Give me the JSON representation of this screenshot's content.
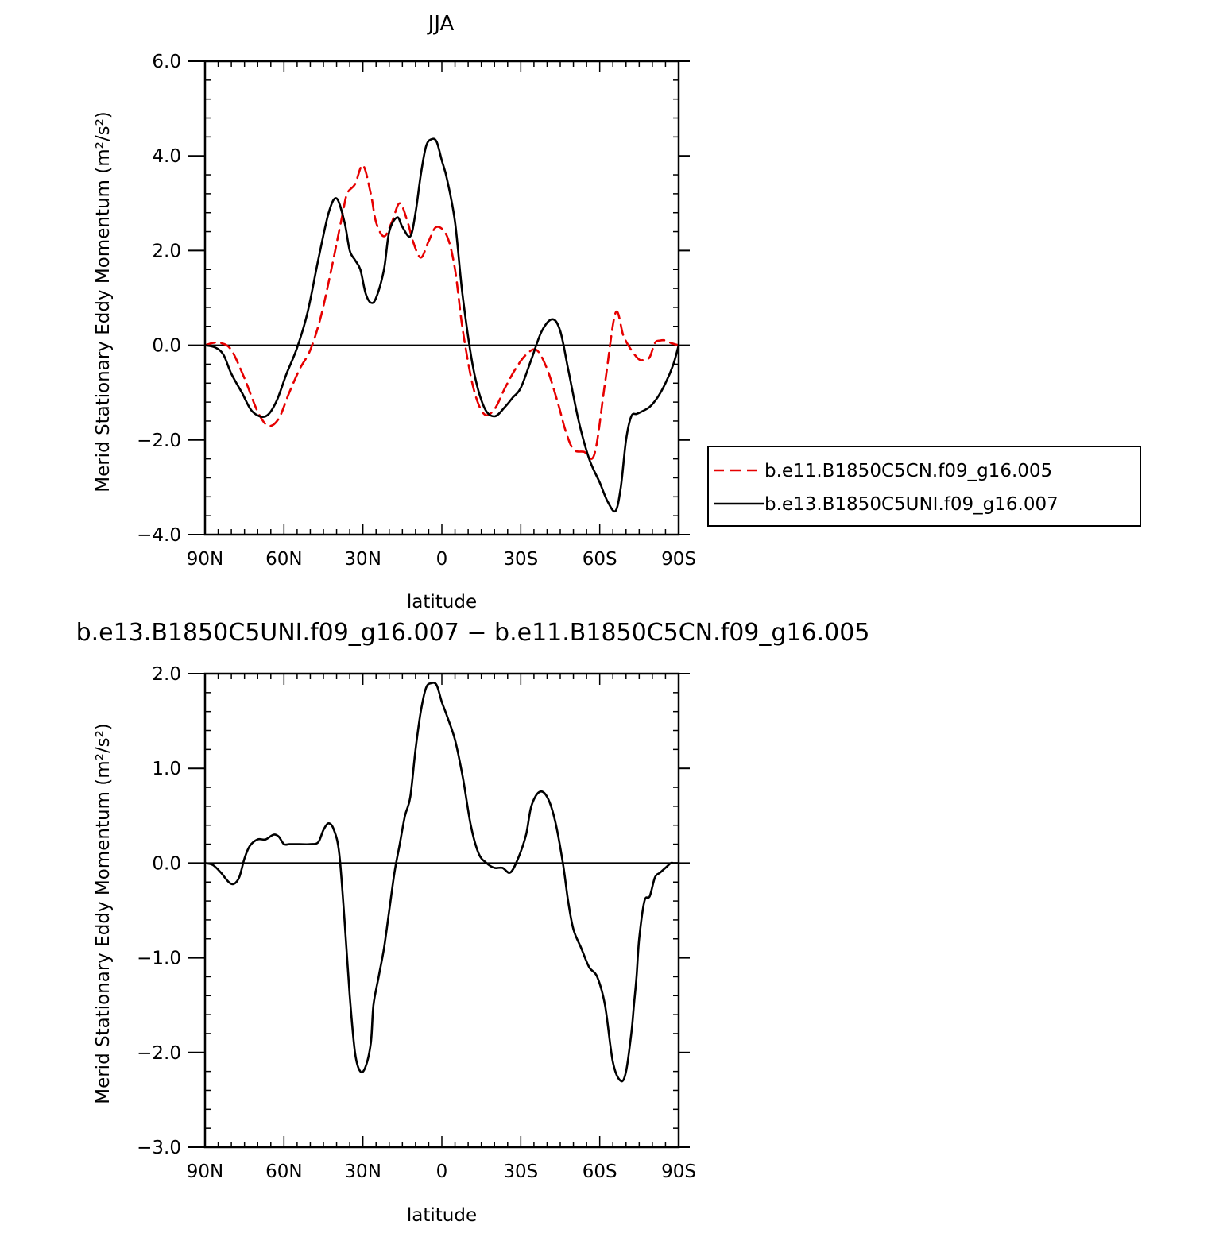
{
  "chart_data": [
    {
      "type": "line",
      "title": "JJA",
      "xlabel": "latitude",
      "ylabel": "Merid Stationary Eddy Momentum (m²/s²)",
      "xlim": [
        90,
        -90
      ],
      "ylim": [
        -4.0,
        6.0
      ],
      "x_ticks": [
        {
          "value": 90,
          "label": "90N"
        },
        {
          "value": 60,
          "label": "60N"
        },
        {
          "value": 30,
          "label": "30N"
        },
        {
          "value": 0,
          "label": "0"
        },
        {
          "value": -30,
          "label": "30S"
        },
        {
          "value": -60,
          "label": "60S"
        },
        {
          "value": -90,
          "label": "90S"
        }
      ],
      "y_ticks": [
        {
          "value": 6.0,
          "label": "6.0"
        },
        {
          "value": 4.0,
          "label": "4.0"
        },
        {
          "value": 2.0,
          "label": "2.0"
        },
        {
          "value": 0.0,
          "label": "0.0"
        },
        {
          "value": -2.0,
          "label": "−2.0"
        },
        {
          "value": -4.0,
          "label": "−4.0"
        }
      ],
      "legend_position": "right",
      "series": [
        {
          "name": "b.e11.B1850C5CN.f09_g16.005",
          "color": "#e60000",
          "dash": "dashed",
          "x": [
            90,
            87,
            84,
            80,
            75,
            70,
            66,
            62,
            58,
            54,
            50,
            46,
            42,
            38,
            36,
            33,
            30,
            27,
            25,
            22,
            19,
            16,
            13,
            11,
            8,
            5,
            2,
            -2,
            -5,
            -8,
            -12,
            -16,
            -20,
            -24,
            -28,
            -32,
            -36,
            -40,
            -44,
            -47,
            -50,
            -54,
            -58,
            -62,
            -66,
            -69,
            -72,
            -75,
            -77,
            -79,
            -81,
            -83,
            -85,
            -87,
            -90
          ],
          "y": [
            0.0,
            0.05,
            0.05,
            -0.1,
            -0.7,
            -1.4,
            -1.7,
            -1.55,
            -1.0,
            -0.5,
            -0.1,
            0.6,
            1.6,
            2.7,
            3.2,
            3.4,
            3.8,
            3.2,
            2.6,
            2.3,
            2.6,
            3.0,
            2.6,
            2.2,
            1.85,
            2.2,
            2.5,
            2.3,
            1.6,
            0.3,
            -0.9,
            -1.45,
            -1.35,
            -0.9,
            -0.5,
            -0.2,
            -0.1,
            -0.5,
            -1.2,
            -1.8,
            -2.2,
            -2.25,
            -2.3,
            -0.8,
            0.68,
            0.2,
            -0.1,
            -0.3,
            -0.3,
            -0.25,
            0.05,
            0.1,
            0.1,
            0.05,
            0.0
          ]
        },
        {
          "name": "b.e13.B1850C5UNI.f09_g16.007",
          "color": "#000000",
          "dash": "solid",
          "x": [
            90,
            86,
            83,
            80,
            76,
            72,
            67,
            63,
            59,
            55,
            51,
            47,
            43,
            40,
            37,
            35,
            33,
            31,
            29,
            27,
            25,
            22,
            20,
            17,
            15,
            12,
            10,
            8,
            6,
            4,
            2,
            0,
            -2,
            -5,
            -8,
            -12,
            -16,
            -20,
            -24,
            -27,
            -30,
            -34,
            -38,
            -42,
            -45,
            -48,
            -52,
            -56,
            -60,
            -63,
            -66,
            -68,
            -70,
            -72,
            -74,
            -76,
            -79,
            -82,
            -85,
            -88,
            -90
          ],
          "y": [
            0.0,
            -0.05,
            -0.2,
            -0.6,
            -1.0,
            -1.4,
            -1.5,
            -1.2,
            -0.6,
            -0.05,
            0.7,
            1.8,
            2.8,
            3.1,
            2.6,
            2.0,
            1.8,
            1.6,
            1.1,
            0.9,
            1.0,
            1.6,
            2.4,
            2.7,
            2.5,
            2.3,
            2.8,
            3.6,
            4.2,
            4.35,
            4.3,
            3.9,
            3.5,
            2.6,
            1.0,
            -0.5,
            -1.3,
            -1.5,
            -1.3,
            -1.1,
            -0.9,
            -0.3,
            0.3,
            0.55,
            0.3,
            -0.5,
            -1.6,
            -2.4,
            -2.9,
            -3.3,
            -3.5,
            -3.0,
            -2.0,
            -1.5,
            -1.45,
            -1.4,
            -1.3,
            -1.1,
            -0.8,
            -0.4,
            0.0
          ]
        }
      ]
    },
    {
      "type": "line",
      "title": "b.e13.B1850C5UNI.f09_g16.007 − b.e11.B1850C5CN.f09_g16.005",
      "xlabel": "latitude",
      "ylabel": "Merid Stationary Eddy Momentum (m²/s²)",
      "xlim": [
        90,
        -90
      ],
      "ylim": [
        -3.0,
        2.0
      ],
      "x_ticks": [
        {
          "value": 90,
          "label": "90N"
        },
        {
          "value": 60,
          "label": "60N"
        },
        {
          "value": 30,
          "label": "30N"
        },
        {
          "value": 0,
          "label": "0"
        },
        {
          "value": -30,
          "label": "30S"
        },
        {
          "value": -60,
          "label": "60S"
        },
        {
          "value": -90,
          "label": "90S"
        }
      ],
      "y_ticks": [
        {
          "value": 2.0,
          "label": "2.0"
        },
        {
          "value": 1.0,
          "label": "1.0"
        },
        {
          "value": 0.0,
          "label": "0.0"
        },
        {
          "value": -1.0,
          "label": "−1.0"
        },
        {
          "value": -2.0,
          "label": "−2.0"
        },
        {
          "value": -3.0,
          "label": "−3.0"
        }
      ],
      "series": [
        {
          "name": "",
          "color": "#000000",
          "dash": "solid",
          "x": [
            90,
            87,
            84,
            81,
            79,
            77,
            75,
            73,
            70,
            67,
            64,
            62,
            60,
            58,
            56,
            54,
            50,
            47,
            45,
            43,
            41,
            39,
            37,
            35,
            33,
            31,
            29,
            27,
            26,
            24,
            22,
            20,
            18,
            16,
            14,
            12,
            10,
            8,
            6,
            4,
            2,
            0,
            -2,
            -5,
            -8,
            -11,
            -14,
            -17,
            -20,
            -23,
            -26,
            -29,
            -32,
            -34,
            -37,
            -40,
            -43,
            -46,
            -48,
            -50,
            -53,
            -56,
            -59,
            -62,
            -65,
            -68,
            -70,
            -72,
            -73,
            -74,
            -75,
            -77,
            -79,
            -81,
            -83,
            -85,
            -87,
            -88,
            -90
          ],
          "y": [
            0.0,
            -0.02,
            -0.1,
            -0.2,
            -0.22,
            -0.15,
            0.05,
            0.18,
            0.25,
            0.25,
            0.3,
            0.28,
            0.2,
            0.2,
            0.2,
            0.2,
            0.2,
            0.22,
            0.35,
            0.42,
            0.35,
            0.1,
            -0.6,
            -1.4,
            -2.0,
            -2.2,
            -2.15,
            -1.9,
            -1.5,
            -1.2,
            -0.9,
            -0.5,
            -0.1,
            0.2,
            0.5,
            0.7,
            1.2,
            1.6,
            1.85,
            1.9,
            1.88,
            1.7,
            1.55,
            1.3,
            0.9,
            0.4,
            0.1,
            0.0,
            -0.05,
            -0.05,
            -0.1,
            0.05,
            0.3,
            0.6,
            0.75,
            0.7,
            0.45,
            0.0,
            -0.4,
            -0.7,
            -0.9,
            -1.1,
            -1.2,
            -1.5,
            -2.1,
            -2.3,
            -2.2,
            -1.8,
            -1.5,
            -1.2,
            -0.8,
            -0.4,
            -0.35,
            -0.15,
            -0.1,
            -0.05,
            0.0,
            0.0,
            0.0
          ]
        }
      ]
    }
  ]
}
